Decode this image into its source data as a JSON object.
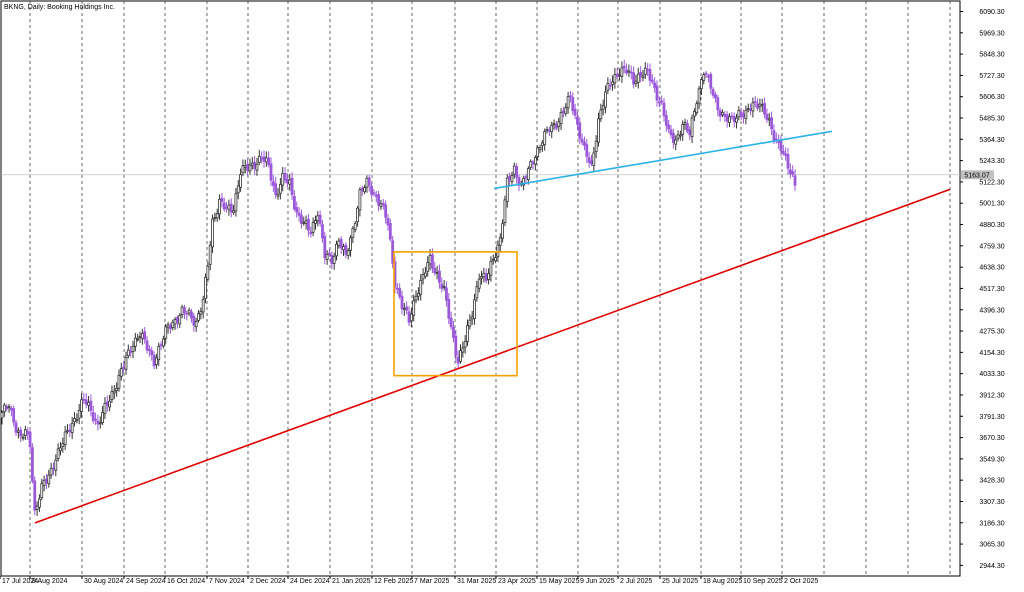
{
  "window_title": "BKNG, Daily: Booking Holdings Inc.",
  "chart_data": {
    "type": "candlestick",
    "title": "BKNG, Daily: Booking Holdings Inc.",
    "symbol": "BKNG",
    "timeframe": "Daily",
    "instrument": "Booking Holdings Inc.",
    "ylim": [
      2884,
      6150
    ],
    "y_ticks": [
      "6090.30",
      "5969.30",
      "5848.30",
      "5727.30",
      "5606.30",
      "5485.30",
      "5364.30",
      "5243.30",
      "5122.30",
      "5001.30",
      "4880.30",
      "4759.30",
      "4638.30",
      "4517.30",
      "4396.30",
      "4275.30",
      "4154.30",
      "4033.30",
      "3912.30",
      "3791.30",
      "3670.30",
      "3549.30",
      "3428.30",
      "3307.30",
      "3186.30",
      "3065.30",
      "2944.30"
    ],
    "x_ticks": [
      "17 Jul 2024",
      "8 Aug 2024",
      "30 Aug 2024",
      "24 Sep 2024",
      "16 Oct 2024",
      "7 Nov 2024",
      "2 Dec 2024",
      "24 Dec 2024",
      "21 Jan 2025",
      "12 Feb 2025",
      "7 Mar 2025",
      "31 Mar 2025",
      "23 Apr 2025",
      "15 May 2025",
      "9 Jun 2025",
      "2 Jul 2025",
      "25 Jul 2025",
      "18 Aug 2025",
      "10 Sep 2025",
      "2 Oct 2025"
    ],
    "current_price": "5163.07",
    "price_path": [
      [
        0,
        3800
      ],
      [
        3,
        3860
      ],
      [
        6,
        3730
      ],
      [
        8,
        3660
      ],
      [
        10,
        3700
      ],
      [
        12,
        3640
      ],
      [
        14,
        3250
      ],
      [
        17,
        3380
      ],
      [
        20,
        3450
      ],
      [
        23,
        3560
      ],
      [
        26,
        3640
      ],
      [
        29,
        3730
      ],
      [
        32,
        3800
      ],
      [
        35,
        3880
      ],
      [
        38,
        3830
      ],
      [
        41,
        3740
      ],
      [
        44,
        3830
      ],
      [
        47,
        3920
      ],
      [
        50,
        4010
      ],
      [
        53,
        4110
      ],
      [
        56,
        4210
      ],
      [
        59,
        4260
      ],
      [
        62,
        4180
      ],
      [
        65,
        4110
      ],
      [
        68,
        4200
      ],
      [
        71,
        4300
      ],
      [
        74,
        4340
      ],
      [
        77,
        4380
      ],
      [
        80,
        4370
      ],
      [
        83,
        4330
      ],
      [
        86,
        4440
      ],
      [
        88,
        4650
      ],
      [
        90,
        4900
      ],
      [
        93,
        5010
      ],
      [
        96,
        4960
      ],
      [
        99,
        4980
      ],
      [
        102,
        5180
      ],
      [
        105,
        5200
      ],
      [
        108,
        5230
      ],
      [
        111,
        5260
      ],
      [
        114,
        5210
      ],
      [
        117,
        5050
      ],
      [
        120,
        5140
      ],
      [
        123,
        5110
      ],
      [
        126,
        4950
      ],
      [
        129,
        4880
      ],
      [
        132,
        4840
      ],
      [
        135,
        4960
      ],
      [
        138,
        4700
      ],
      [
        141,
        4680
      ],
      [
        144,
        4800
      ],
      [
        147,
        4690
      ],
      [
        150,
        4850
      ],
      [
        153,
        5060
      ],
      [
        156,
        5110
      ],
      [
        159,
        5060
      ],
      [
        162,
        5000
      ],
      [
        165,
        4880
      ],
      [
        168,
        4560
      ],
      [
        171,
        4420
      ],
      [
        174,
        4330
      ],
      [
        177,
        4490
      ],
      [
        180,
        4580
      ],
      [
        183,
        4680
      ],
      [
        186,
        4600
      ],
      [
        189,
        4500
      ],
      [
        192,
        4290
      ],
      [
        195,
        4110
      ],
      [
        198,
        4220
      ],
      [
        201,
        4380
      ],
      [
        204,
        4600
      ],
      [
        207,
        4560
      ],
      [
        210,
        4690
      ],
      [
        213,
        4800
      ],
      [
        216,
        5110
      ],
      [
        219,
        5200
      ],
      [
        222,
        5100
      ],
      [
        225,
        5180
      ],
      [
        228,
        5280
      ],
      [
        231,
        5360
      ],
      [
        234,
        5420
      ],
      [
        237,
        5460
      ],
      [
        240,
        5520
      ],
      [
        243,
        5600
      ],
      [
        246,
        5450
      ],
      [
        249,
        5300
      ],
      [
        252,
        5200
      ],
      [
        255,
        5480
      ],
      [
        258,
        5620
      ],
      [
        261,
        5700
      ],
      [
        264,
        5760
      ],
      [
        267,
        5750
      ],
      [
        270,
        5700
      ],
      [
        273,
        5740
      ],
      [
        276,
        5740
      ],
      [
        279,
        5650
      ],
      [
        282,
        5560
      ],
      [
        285,
        5390
      ],
      [
        288,
        5360
      ],
      [
        291,
        5450
      ],
      [
        294,
        5390
      ],
      [
        297,
        5600
      ],
      [
        300,
        5750
      ],
      [
        303,
        5660
      ],
      [
        306,
        5550
      ],
      [
        309,
        5480
      ],
      [
        312,
        5470
      ],
      [
        315,
        5520
      ],
      [
        318,
        5500
      ],
      [
        321,
        5560
      ],
      [
        324,
        5580
      ],
      [
        327,
        5480
      ],
      [
        330,
        5380
      ],
      [
        333,
        5330
      ],
      [
        336,
        5200
      ],
      [
        339,
        5110
      ]
    ],
    "series": [
      {
        "name": "BKNG",
        "colors": {
          "up": "#808080",
          "down": "#9b59d9"
        }
      }
    ],
    "trendlines": [
      {
        "color": "#e10000",
        "from": {
          "x": "8 Aug 2024",
          "y": 3186
        },
        "to": {
          "x": "Nov 2025",
          "y": 5080
        }
      },
      {
        "color": "#2ab3e8",
        "from": {
          "x": "23 Apr 2025",
          "y": 5085
        },
        "to": {
          "x": "Oct 2025",
          "y": 5410
        }
      }
    ],
    "highlight_box": {
      "color": "#f5a100",
      "x_from": "Mar 2025",
      "x_to": "Apr 2025",
      "y_from": 4022,
      "y_to": 4725
    },
    "grid": "vertical dashed",
    "axis": "right"
  }
}
